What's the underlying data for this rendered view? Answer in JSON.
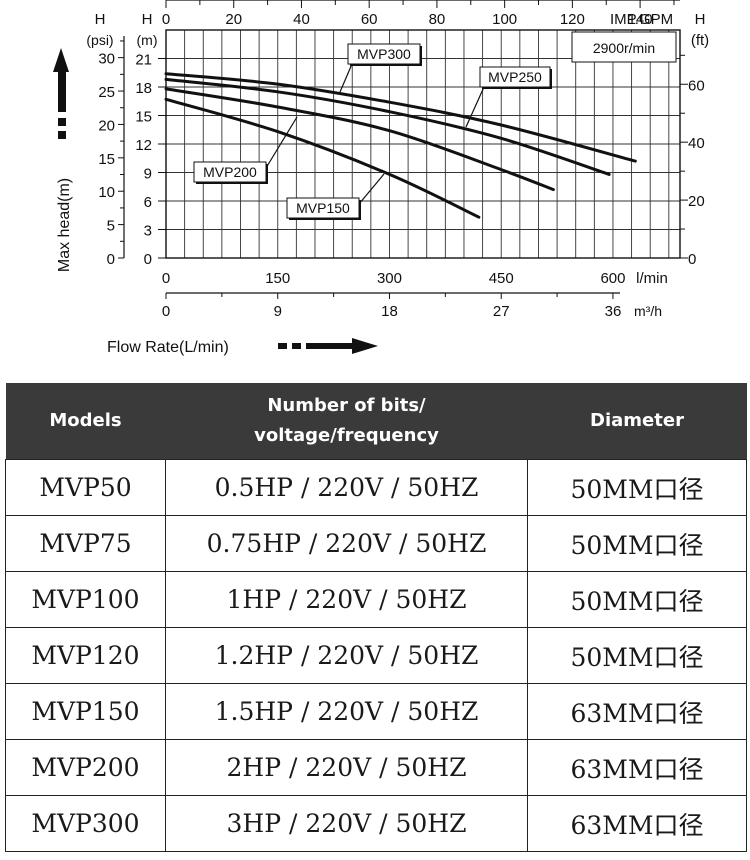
{
  "chart_data": {
    "type": "line",
    "title": "",
    "xlabel": "Flow Rate(L/min)",
    "ylabel": "Max head(m)",
    "speed": "2900r/min",
    "xlim": [
      0,
      690
    ],
    "ylim": [
      0,
      24
    ],
    "grid": true,
    "axes": {
      "x_bottom": {
        "unit": "l/min",
        "ticks": [
          "0",
          "150",
          "300",
          "450",
          "600"
        ]
      },
      "x_bottom2": {
        "unit": "m³/h",
        "ticks": [
          "0",
          "9",
          "18",
          "27",
          "36"
        ]
      },
      "x_top": {
        "unit": "IMP.GPM",
        "label": "H",
        "ticks": [
          "0",
          "20",
          "40",
          "60",
          "80",
          "100",
          "120",
          "140"
        ]
      },
      "y_left_psi": {
        "label": "H",
        "unit": "(psi)",
        "ticks": [
          "0",
          "5",
          "10",
          "15",
          "20",
          "25",
          "30"
        ]
      },
      "y_left_m": {
        "label": "H",
        "unit": "(m)",
        "ticks": [
          "0",
          "3",
          "6",
          "9",
          "12",
          "15",
          "18",
          "21"
        ]
      },
      "y_right_ft": {
        "label": "H",
        "unit": "(ft)",
        "ticks": [
          "0",
          "20",
          "40",
          "60"
        ]
      }
    },
    "series": [
      {
        "name": "MVP300",
        "x": [
          0,
          150,
          300,
          450,
          630
        ],
        "y": [
          19.4,
          18.3,
          16.4,
          14.0,
          10.2
        ]
      },
      {
        "name": "MVP250",
        "x": [
          0,
          150,
          300,
          450,
          595
        ],
        "y": [
          18.8,
          17.5,
          15.4,
          12.6,
          8.8
        ]
      },
      {
        "name": "MVP200",
        "x": [
          0,
          150,
          300,
          450,
          520
        ],
        "y": [
          17.8,
          15.9,
          13.4,
          9.3,
          7.2
        ]
      },
      {
        "name": "MVP150",
        "x": [
          0,
          150,
          300,
          420
        ],
        "y": [
          16.7,
          13.3,
          8.8,
          4.3
        ]
      }
    ]
  },
  "table": {
    "headers": [
      "Models",
      "Number of bits/\nvoltage/frequency",
      "Diameter"
    ],
    "rows": [
      [
        "MVP50",
        "0.5HP / 220V / 50HZ",
        "50MM口径"
      ],
      [
        "MVP75",
        "0.75HP / 220V / 50HZ",
        "50MM口径"
      ],
      [
        "MVP100",
        "1HP / 220V / 50HZ",
        "50MM口径"
      ],
      [
        "MVP120",
        "1.2HP / 220V / 50HZ",
        "50MM口径"
      ],
      [
        "MVP150",
        "1.5HP / 220V / 50HZ",
        "63MM口径"
      ],
      [
        "MVP200",
        "2HP / 220V / 50HZ",
        "63MM口径"
      ],
      [
        "MVP300",
        "3HP / 220V / 50HZ",
        "63MM口径"
      ]
    ]
  }
}
